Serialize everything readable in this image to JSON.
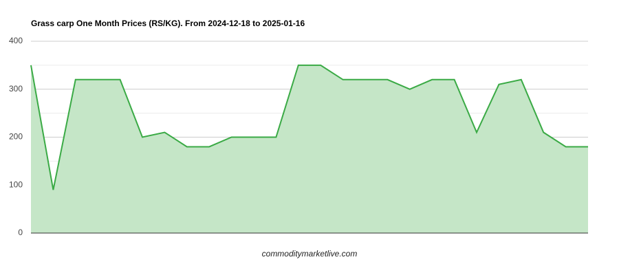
{
  "chart_data": {
    "type": "area",
    "title": "Grass carp One Month Prices (RS/KG). From 2024-12-18 to 2025-01-16",
    "caption": "commoditymarketlive.com",
    "values": [
      350,
      90,
      320,
      320,
      320,
      200,
      210,
      180,
      180,
      200,
      200,
      200,
      350,
      350,
      320,
      320,
      320,
      300,
      320,
      320,
      210,
      310,
      320,
      210,
      180,
      180
    ],
    "color": "#3aaa45",
    "fill_color": "#c5e6c7",
    "ylim": [
      0,
      400
    ],
    "yticks": [
      0,
      100,
      200,
      300,
      400
    ],
    "minor_yticks": [
      50,
      150,
      250,
      350
    ],
    "grid": true
  }
}
